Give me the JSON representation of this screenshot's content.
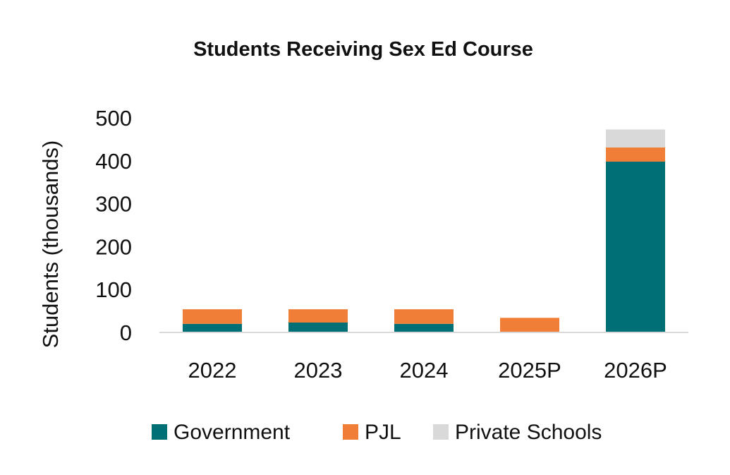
{
  "chart_data": {
    "type": "bar",
    "stacked": true,
    "title": "Students Receiving Sex Ed Course",
    "xlabel": "",
    "ylabel": "Students (thousands)",
    "ylim": [
      0,
      500
    ],
    "yticks": [
      "0",
      "100",
      "200",
      "300",
      "400",
      "500"
    ],
    "ytick_values": [
      0,
      100,
      200,
      300,
      400,
      500
    ],
    "categories": [
      "2022",
      "2023",
      "2024",
      "2025P",
      "2026P"
    ],
    "series": [
      {
        "name": "Government",
        "color": "#007076",
        "values": [
          20,
          23,
          20,
          0,
          398
        ]
      },
      {
        "name": "PJL",
        "color": "#F07E36",
        "values": [
          34,
          31,
          34,
          34,
          33
        ]
      },
      {
        "name": "Private Schools",
        "color": "#D9D9D9",
        "values": [
          0,
          0,
          0,
          0,
          42
        ]
      }
    ],
    "legend_position": "bottom",
    "grid": false
  }
}
